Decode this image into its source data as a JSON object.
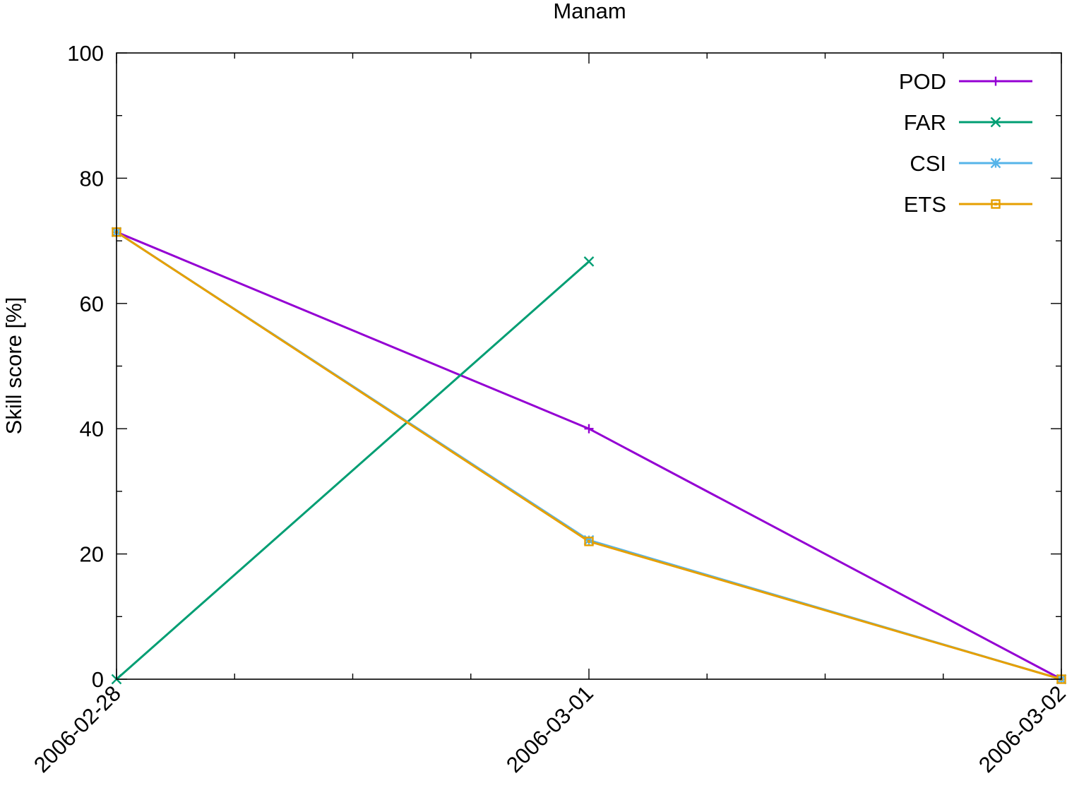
{
  "chart_data": {
    "type": "line",
    "title": "Manam",
    "xlabel": "",
    "ylabel": "Skill score [%]",
    "x": [
      "2006-02-28",
      "2006-03-01",
      "2006-03-02"
    ],
    "x_tick_labels": [
      "2006-02-28",
      "2006-03-01",
      "2006-03-02"
    ],
    "ylim": [
      0,
      100
    ],
    "y_tick_labels": [
      "0",
      "20",
      "40",
      "60",
      "80",
      "100"
    ],
    "grid": false,
    "legend_position": "top-right",
    "series": [
      {
        "name": "POD",
        "values": [
          71.4,
          40.0,
          0.0
        ],
        "color": "#9400d3",
        "marker": "plus"
      },
      {
        "name": "FAR",
        "values": [
          0.0,
          66.7,
          null
        ],
        "color": "#009e73",
        "marker": "cross"
      },
      {
        "name": "CSI",
        "values": [
          71.4,
          22.2,
          0.0
        ],
        "color": "#56b4e9",
        "marker": "star"
      },
      {
        "name": "ETS",
        "values": [
          71.4,
          22.0,
          0.0
        ],
        "color": "#e69f00",
        "marker": "square"
      }
    ]
  }
}
